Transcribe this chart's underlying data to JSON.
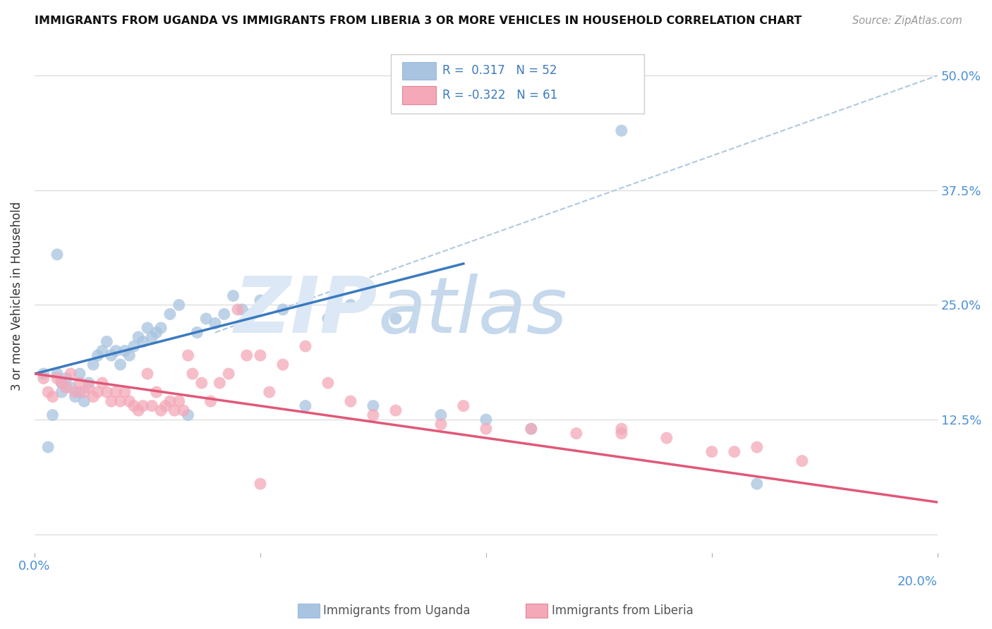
{
  "title": "IMMIGRANTS FROM UGANDA VS IMMIGRANTS FROM LIBERIA 3 OR MORE VEHICLES IN HOUSEHOLD CORRELATION CHART",
  "source": "Source: ZipAtlas.com",
  "ylabel": "3 or more Vehicles in Household",
  "xlim": [
    0.0,
    0.2
  ],
  "ylim": [
    -0.02,
    0.54
  ],
  "uganda_color": "#a8c4e0",
  "liberia_color": "#f4a8b8",
  "trend_uganda_color": "#3a7abf",
  "trend_liberia_color": "#e05878",
  "ref_line_color": "#b0c8e0",
  "uganda_R": 0.317,
  "uganda_N": 52,
  "liberia_R": -0.322,
  "liberia_N": 61,
  "uganda_line_x0": 0.0,
  "uganda_line_y0": 0.175,
  "uganda_line_x1": 0.095,
  "uganda_line_y1": 0.295,
  "liberia_line_x0": 0.0,
  "liberia_line_y0": 0.175,
  "liberia_line_x1": 0.2,
  "liberia_line_y1": 0.035,
  "ref_line_x0": 0.04,
  "ref_line_y0": 0.22,
  "ref_line_x1": 0.2,
  "ref_line_y1": 0.5,
  "uganda_scatter_x": [
    0.002,
    0.003,
    0.004,
    0.005,
    0.005,
    0.006,
    0.006,
    0.007,
    0.008,
    0.009,
    0.01,
    0.01,
    0.011,
    0.012,
    0.013,
    0.014,
    0.015,
    0.016,
    0.017,
    0.018,
    0.019,
    0.02,
    0.021,
    0.022,
    0.023,
    0.024,
    0.025,
    0.026,
    0.027,
    0.028,
    0.03,
    0.032,
    0.034,
    0.036,
    0.038,
    0.04,
    0.042,
    0.044,
    0.046,
    0.048,
    0.05,
    0.055,
    0.06,
    0.065,
    0.07,
    0.075,
    0.08,
    0.09,
    0.1,
    0.11,
    0.13,
    0.16
  ],
  "uganda_scatter_y": [
    0.175,
    0.095,
    0.13,
    0.305,
    0.175,
    0.165,
    0.155,
    0.17,
    0.16,
    0.15,
    0.175,
    0.155,
    0.145,
    0.165,
    0.185,
    0.195,
    0.2,
    0.21,
    0.195,
    0.2,
    0.185,
    0.2,
    0.195,
    0.205,
    0.215,
    0.21,
    0.225,
    0.215,
    0.22,
    0.225,
    0.24,
    0.25,
    0.13,
    0.22,
    0.235,
    0.23,
    0.24,
    0.26,
    0.245,
    0.24,
    0.255,
    0.245,
    0.14,
    0.235,
    0.25,
    0.14,
    0.235,
    0.13,
    0.125,
    0.115,
    0.44,
    0.055
  ],
  "liberia_scatter_x": [
    0.002,
    0.003,
    0.004,
    0.005,
    0.006,
    0.007,
    0.008,
    0.009,
    0.01,
    0.011,
    0.012,
    0.013,
    0.014,
    0.015,
    0.016,
    0.017,
    0.018,
    0.019,
    0.02,
    0.021,
    0.022,
    0.023,
    0.024,
    0.025,
    0.026,
    0.027,
    0.028,
    0.029,
    0.03,
    0.031,
    0.032,
    0.033,
    0.034,
    0.035,
    0.037,
    0.039,
    0.041,
    0.043,
    0.045,
    0.047,
    0.05,
    0.052,
    0.055,
    0.06,
    0.065,
    0.07,
    0.075,
    0.08,
    0.09,
    0.095,
    0.1,
    0.11,
    0.12,
    0.13,
    0.14,
    0.15,
    0.16,
    0.17,
    0.13,
    0.155,
    0.05
  ],
  "liberia_scatter_y": [
    0.17,
    0.155,
    0.15,
    0.17,
    0.165,
    0.16,
    0.175,
    0.155,
    0.165,
    0.155,
    0.16,
    0.15,
    0.155,
    0.165,
    0.155,
    0.145,
    0.155,
    0.145,
    0.155,
    0.145,
    0.14,
    0.135,
    0.14,
    0.175,
    0.14,
    0.155,
    0.135,
    0.14,
    0.145,
    0.135,
    0.145,
    0.135,
    0.195,
    0.175,
    0.165,
    0.145,
    0.165,
    0.175,
    0.245,
    0.195,
    0.195,
    0.155,
    0.185,
    0.205,
    0.165,
    0.145,
    0.13,
    0.135,
    0.12,
    0.14,
    0.115,
    0.115,
    0.11,
    0.11,
    0.105,
    0.09,
    0.095,
    0.08,
    0.115,
    0.09,
    0.055
  ]
}
